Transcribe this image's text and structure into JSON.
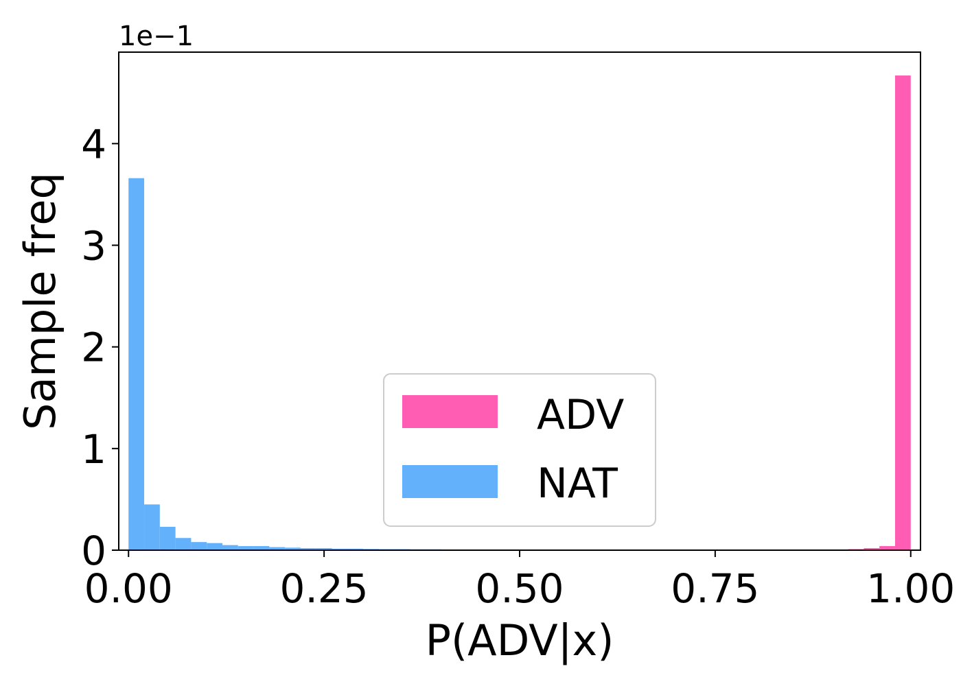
{
  "chart_data": {
    "type": "histogram",
    "xlabel": "P(ADV|x)",
    "ylabel": "Sample freq",
    "y_offset_label": "1e−1",
    "xlim": [
      -0.0125,
      1.0125
    ],
    "ylim": [
      0,
      4.9
    ],
    "x_ticks": [
      0.0,
      0.25,
      0.5,
      0.75,
      1.0
    ],
    "x_tick_labels": [
      "0.00",
      "0.25",
      "0.50",
      "0.75",
      "1.00"
    ],
    "y_ticks": [
      0,
      1,
      2,
      3,
      4
    ],
    "y_tick_labels": [
      "0",
      "1",
      "2",
      "3",
      "4"
    ],
    "bin_width": 0.02,
    "legend": {
      "position": "lower center",
      "entries": [
        "ADV",
        "NAT"
      ]
    },
    "colors": {
      "ADV": "#ff5cb3",
      "NAT": "#64b1fb"
    },
    "series": [
      {
        "name": "ADV",
        "bin_start": [
          0.9,
          0.92,
          0.94,
          0.96,
          0.98
        ],
        "values": [
          0.005,
          0.01,
          0.02,
          0.04,
          4.67
        ]
      },
      {
        "name": "NAT",
        "bin_start": [
          0.0,
          0.02,
          0.04,
          0.06,
          0.08,
          0.1,
          0.12,
          0.14,
          0.16,
          0.18,
          0.2,
          0.22,
          0.24,
          0.26,
          0.28,
          0.3,
          0.32,
          0.34,
          0.36,
          0.38,
          0.4,
          0.42,
          0.44,
          0.46
        ],
        "values": [
          3.66,
          0.45,
          0.23,
          0.12,
          0.08,
          0.07,
          0.05,
          0.04,
          0.04,
          0.03,
          0.025,
          0.02,
          0.02,
          0.015,
          0.015,
          0.012,
          0.01,
          0.01,
          0.008,
          0.008,
          0.006,
          0.005,
          0.005,
          0.004
        ]
      }
    ]
  }
}
